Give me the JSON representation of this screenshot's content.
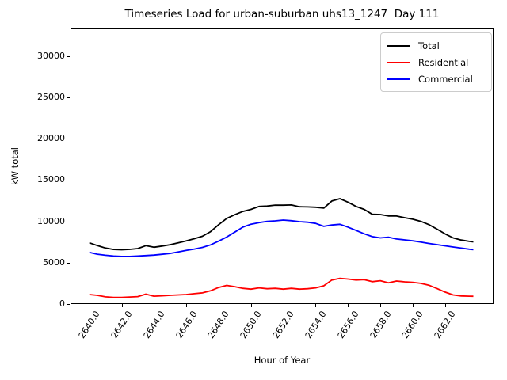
{
  "chart_data": {
    "type": "line",
    "title": "Timeseries Load for urban-suburban uhs13_1247  Day 111",
    "xlabel": "Hour of Year",
    "ylabel": "kW total",
    "xlim": [
      2638.84,
      2665.0
    ],
    "ylim": [
      0,
      33330
    ],
    "grid": false,
    "legend_position": "upper right",
    "xticks": [
      2640,
      2642,
      2644,
      2646,
      2648,
      2650,
      2652,
      2654,
      2656,
      2658,
      2660,
      2662
    ],
    "xtick_labels": [
      "2640.0",
      "2642.0",
      "2644.0",
      "2646.0",
      "2648.0",
      "2650.0",
      "2652.0",
      "2654.0",
      "2656.0",
      "2658.0",
      "2660.0",
      "2662.0"
    ],
    "yticks": [
      0,
      5000,
      10000,
      15000,
      20000,
      25000,
      30000
    ],
    "ytick_labels": [
      "0",
      "5000",
      "10000",
      "15000",
      "20000",
      "25000",
      "30000"
    ],
    "x": [
      2640.0,
      2640.5,
      2641.0,
      2641.5,
      2642.0,
      2642.5,
      2643.0,
      2643.5,
      2644.0,
      2644.5,
      2645.0,
      2645.5,
      2646.0,
      2646.5,
      2647.0,
      2647.5,
      2648.0,
      2648.5,
      2649.0,
      2649.5,
      2650.0,
      2650.5,
      2651.0,
      2651.5,
      2652.0,
      2652.5,
      2653.0,
      2653.5,
      2654.0,
      2654.5,
      2655.0,
      2655.5,
      2656.0,
      2656.5,
      2657.0,
      2657.5,
      2658.0,
      2658.5,
      2659.0,
      2659.5,
      2660.0,
      2660.5,
      2661.0,
      2661.5,
      2662.0,
      2662.5,
      2663.0,
      2663.5,
      2663.75
    ],
    "series": [
      {
        "name": "Total",
        "color": "#000000",
        "values": [
          7400,
          7070,
          6770,
          6600,
          6560,
          6610,
          6700,
          7060,
          6870,
          7010,
          7170,
          7400,
          7630,
          7900,
          8200,
          8750,
          9600,
          10350,
          10800,
          11200,
          11450,
          11800,
          11850,
          11960,
          11950,
          11980,
          11760,
          11740,
          11700,
          11600,
          12460,
          12740,
          12320,
          11800,
          11450,
          10850,
          10820,
          10650,
          10640,
          10440,
          10260,
          10000,
          9610,
          9060,
          8490,
          8000,
          7740,
          7580,
          7520
        ]
      },
      {
        "name": "Residential",
        "color": "#ff0000",
        "values": [
          1150,
          1050,
          870,
          800,
          800,
          850,
          900,
          1200,
          950,
          1000,
          1050,
          1100,
          1150,
          1250,
          1350,
          1600,
          2000,
          2250,
          2100,
          1900,
          1800,
          1950,
          1850,
          1900,
          1800,
          1900,
          1800,
          1850,
          1950,
          2200,
          2900,
          3100,
          3020,
          2900,
          2950,
          2700,
          2820,
          2570,
          2780,
          2680,
          2620,
          2500,
          2280,
          1880,
          1450,
          1100,
          980,
          950,
          940
        ]
      },
      {
        "name": "Commercial",
        "color": "#0000ff",
        "values": [
          6250,
          6020,
          5900,
          5800,
          5760,
          5760,
          5800,
          5860,
          5920,
          6010,
          6120,
          6300,
          6480,
          6650,
          6850,
          7150,
          7600,
          8100,
          8700,
          9300,
          9650,
          9850,
          10000,
          10060,
          10150,
          10080,
          9960,
          9890,
          9750,
          9400,
          9560,
          9640,
          9300,
          8900,
          8500,
          8150,
          8000,
          8080,
          7860,
          7760,
          7640,
          7500,
          7330,
          7180,
          7040,
          6900,
          6760,
          6630,
          6580
        ]
      }
    ],
    "line_width": 1.8
  }
}
